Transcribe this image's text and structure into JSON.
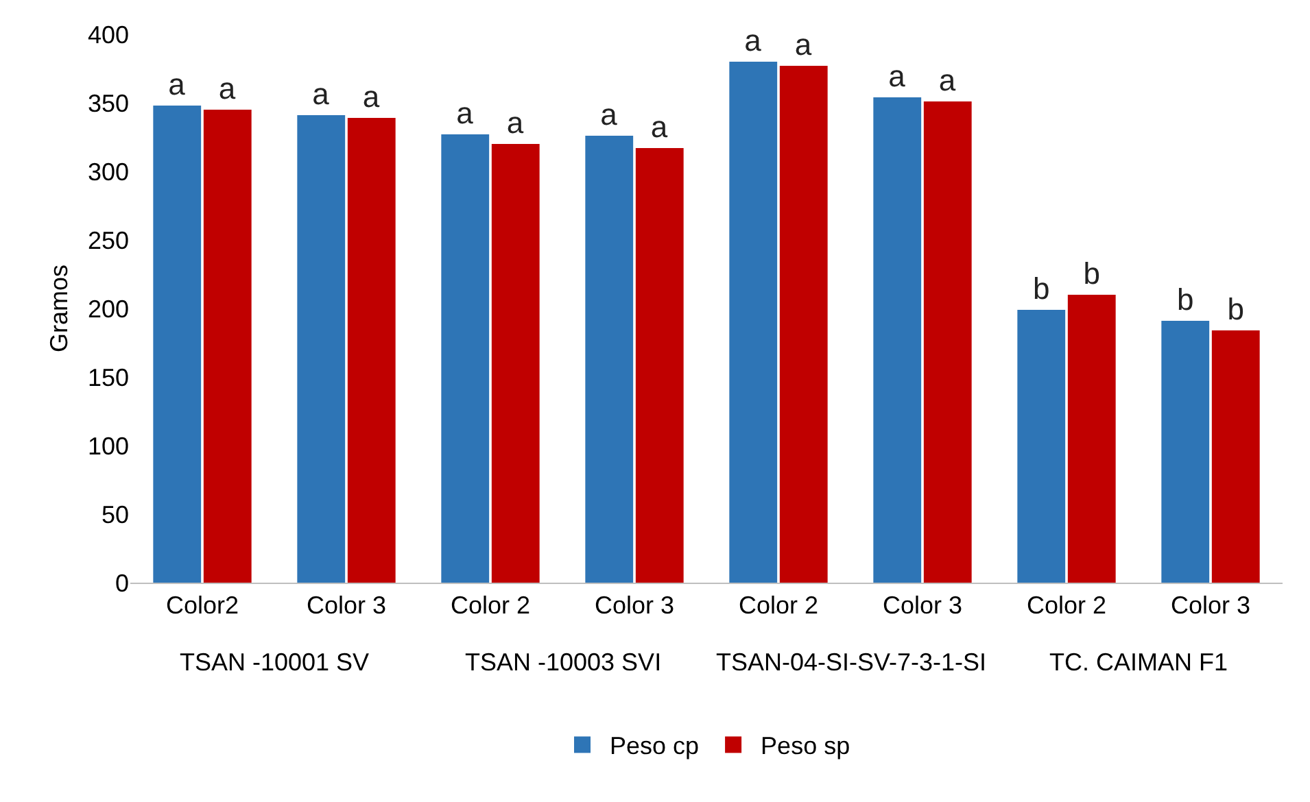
{
  "chart_data": {
    "type": "bar",
    "ylabel": "Gramos",
    "categories": [
      "Color2",
      "Color 3",
      "Color 2",
      "Color 3",
      "Color 2",
      "Color 3",
      "Color 2",
      "Color 3"
    ],
    "annotations": [
      "TSAN -10001 SV",
      "TSAN -10003 SVI",
      "TSAN-04-SI-SV-7-3-1-SI",
      "TC. CAIMAN F1"
    ],
    "series": [
      {
        "name": "Peso cp",
        "color": "#2e75b6",
        "values": [
          348,
          341,
          327,
          326,
          380,
          354,
          199,
          191
        ],
        "value_labels": [
          "a",
          "a",
          "a",
          "a",
          "a",
          "a",
          "b",
          "b"
        ]
      },
      {
        "name": "Peso sp",
        "color": "#c00000",
        "values": [
          345,
          339,
          320,
          317,
          377,
          351,
          210,
          184
        ],
        "value_labels": [
          "a",
          "a",
          "a",
          "a",
          "a",
          "a",
          "b",
          "b"
        ]
      }
    ],
    "ylim": [
      0,
      400
    ],
    "yticks": [
      0,
      50,
      100,
      150,
      200,
      250,
      300,
      350,
      400
    ],
    "grid": false,
    "legend": "bottom"
  }
}
